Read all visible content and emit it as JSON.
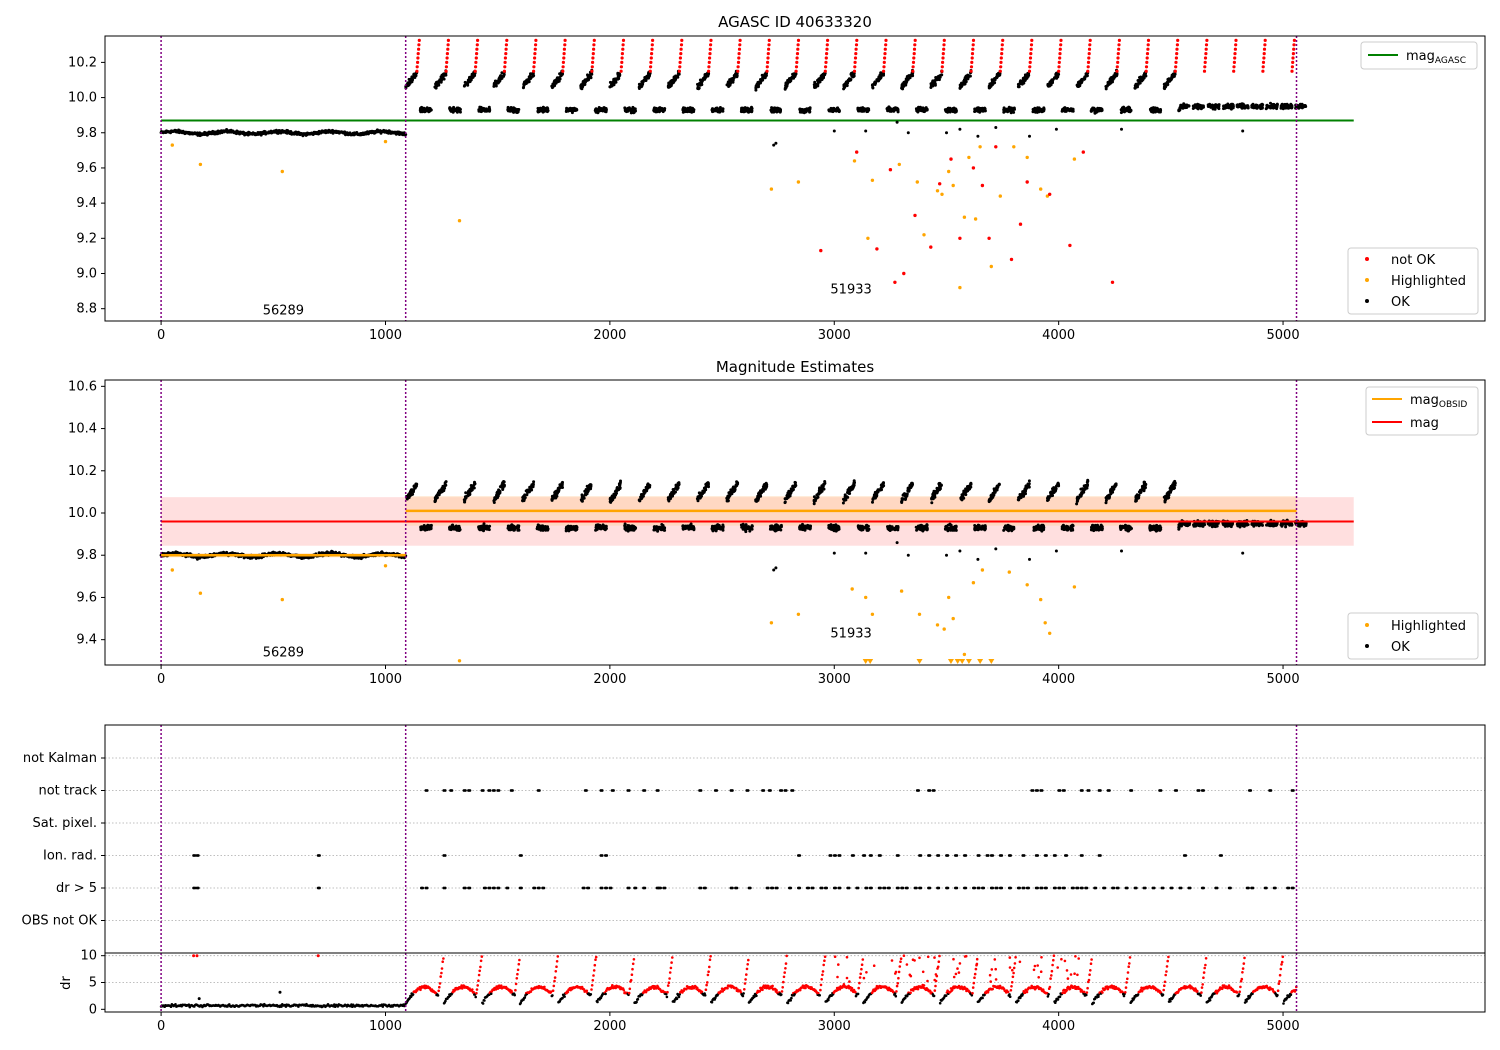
{
  "colors": {
    "ok": "#000000",
    "not_ok": "#ff0000",
    "highlighted": "#ffa500",
    "mag_agasc": "#008000",
    "mag_obsid": "#ffa500",
    "mag": "#ff0000",
    "obsid_boundary": "#800080",
    "band_fill": "#ffc0c0",
    "band_fill_obsid": "#ffd0a0"
  },
  "chart_data": [
    {
      "type": "scatter",
      "title": "AGASC ID 40633320",
      "xlim": [
        -250,
        5900
      ],
      "ylim": [
        8.73,
        10.35
      ],
      "xticks": [
        0,
        1000,
        2000,
        3000,
        4000,
        5000
      ],
      "yticks": [
        8.8,
        9.0,
        9.2,
        9.4,
        9.6,
        9.8,
        10.0,
        10.2
      ],
      "legend_upper": [
        {
          "label": "mag",
          "sub": "AGASC",
          "color": "#008000"
        }
      ],
      "legend_lower": [
        {
          "label": "not OK",
          "color": "#ff0000"
        },
        {
          "label": "Highlighted",
          "color": "#ffa500"
        },
        {
          "label": "OK",
          "color": "#000000"
        }
      ],
      "hline": {
        "name": "mag_AGASC",
        "y": 9.87
      },
      "obsid_boundaries": [
        0,
        1090,
        5060
      ],
      "obsid_labels": [
        {
          "text": "56289",
          "x": 545,
          "y": 8.79
        },
        {
          "text": "51933",
          "x": 3075,
          "y": 8.91
        }
      ],
      "segments": [
        {
          "x0": 0,
          "x1": 1090,
          "base": 9.8,
          "jitter": 0.02
        },
        {
          "x0": 1090,
          "x1": 5060,
          "base": 10.0,
          "jitter": 0.03
        }
      ],
      "highlighted_points": [
        [
          50,
          9.73
        ],
        [
          175,
          9.62
        ],
        [
          540,
          9.58
        ],
        [
          1000,
          9.75
        ],
        [
          1330,
          9.3
        ],
        [
          2720,
          9.48
        ],
        [
          2840,
          9.52
        ],
        [
          3090,
          9.64
        ],
        [
          3150,
          9.2
        ],
        [
          3170,
          9.53
        ],
        [
          3290,
          9.62
        ],
        [
          3370,
          9.52
        ],
        [
          3400,
          9.22
        ],
        [
          3460,
          9.47
        ],
        [
          3480,
          9.45
        ],
        [
          3510,
          9.58
        ],
        [
          3530,
          9.5
        ],
        [
          3560,
          8.92
        ],
        [
          3580,
          9.32
        ],
        [
          3600,
          9.66
        ],
        [
          3630,
          9.31
        ],
        [
          3650,
          9.72
        ],
        [
          3700,
          9.04
        ],
        [
          3740,
          9.44
        ],
        [
          3800,
          9.72
        ],
        [
          3860,
          9.66
        ],
        [
          3920,
          9.48
        ],
        [
          3950,
          9.44
        ],
        [
          4070,
          9.65
        ]
      ],
      "not_ok_points": [
        [
          2940,
          9.13
        ],
        [
          3100,
          9.69
        ],
        [
          3190,
          9.14
        ],
        [
          3250,
          9.59
        ],
        [
          3270,
          8.95
        ],
        [
          3310,
          9.0
        ],
        [
          3360,
          9.33
        ],
        [
          3430,
          9.15
        ],
        [
          3470,
          9.51
        ],
        [
          3520,
          9.65
        ],
        [
          3560,
          9.2
        ],
        [
          3620,
          9.6
        ],
        [
          3660,
          9.5
        ],
        [
          3690,
          9.2
        ],
        [
          3720,
          9.72
        ],
        [
          3790,
          9.08
        ],
        [
          3830,
          9.28
        ],
        [
          3860,
          9.52
        ],
        [
          3960,
          9.45
        ],
        [
          4050,
          9.16
        ],
        [
          4110,
          9.69
        ],
        [
          4240,
          8.95
        ]
      ],
      "ok_outliers": [
        [
          2730,
          9.73
        ],
        [
          2740,
          9.74
        ],
        [
          3000,
          9.81
        ],
        [
          3140,
          9.81
        ],
        [
          3280,
          9.86
        ],
        [
          3330,
          9.8
        ],
        [
          3500,
          9.8
        ],
        [
          3560,
          9.82
        ],
        [
          3640,
          9.78
        ],
        [
          3720,
          9.83
        ],
        [
          3870,
          9.78
        ],
        [
          3990,
          9.82
        ],
        [
          4280,
          9.82
        ],
        [
          4820,
          9.81
        ]
      ]
    },
    {
      "type": "scatter",
      "title": "Magnitude Estimates",
      "xlim": [
        -250,
        5900
      ],
      "ylim": [
        9.28,
        10.63
      ],
      "xticks": [
        0,
        1000,
        2000,
        3000,
        4000,
        5000
      ],
      "yticks": [
        9.4,
        9.6,
        9.8,
        10.0,
        10.2,
        10.4,
        10.6
      ],
      "legend_upper": [
        {
          "label": "mag",
          "sub": "OBSID",
          "color": "#ffa500"
        },
        {
          "label": "mag",
          "sub": "",
          "color": "#ff0000"
        }
      ],
      "legend_lower": [
        {
          "label": "Highlighted",
          "color": "#ffa500"
        },
        {
          "label": "OK",
          "color": "#000000"
        }
      ],
      "mag": {
        "y": 9.96,
        "band": [
          9.845,
          10.075
        ],
        "x0": 0,
        "x1": 5315
      },
      "mag_obsid": [
        {
          "x0": 0,
          "x1": 1090,
          "y": 9.8,
          "band": [
            9.79,
            9.81
          ]
        },
        {
          "x0": 1090,
          "x1": 5060,
          "y": 10.01,
          "band": [
            9.94,
            10.08
          ]
        }
      ],
      "obsid_boundaries": [
        0,
        1090,
        5060
      ],
      "obsid_labels": [
        {
          "text": "56289",
          "x": 545,
          "y": 9.34
        },
        {
          "text": "51933",
          "x": 3075,
          "y": 9.43
        }
      ],
      "highlighted_points": [
        [
          50,
          9.73
        ],
        [
          175,
          9.62
        ],
        [
          540,
          9.59
        ],
        [
          1000,
          9.75
        ],
        [
          1330,
          9.3
        ],
        [
          2720,
          9.48
        ],
        [
          2840,
          9.52
        ],
        [
          3080,
          9.64
        ],
        [
          3140,
          9.6
        ],
        [
          3170,
          9.52
        ],
        [
          3300,
          9.63
        ],
        [
          3380,
          9.52
        ],
        [
          3460,
          9.47
        ],
        [
          3490,
          9.45
        ],
        [
          3510,
          9.6
        ],
        [
          3530,
          9.5
        ],
        [
          3580,
          9.33
        ],
        [
          3620,
          9.67
        ],
        [
          3660,
          9.73
        ],
        [
          3780,
          9.72
        ],
        [
          3860,
          9.66
        ],
        [
          3920,
          9.59
        ],
        [
          3940,
          9.48
        ],
        [
          3960,
          9.43
        ],
        [
          4070,
          9.65
        ]
      ],
      "clipped_points": [
        3140,
        3160,
        3380,
        3520,
        3550,
        3570,
        3600,
        3650,
        3700
      ]
    },
    {
      "type": "scatter",
      "title": "",
      "xlim": [
        -250,
        5900
      ],
      "categories": [
        "not Kalman",
        "not track",
        "Sat. pixel.",
        "Ion. rad.",
        "dr > 5",
        "OBS not OK"
      ],
      "flag_x": {
        "not track": [
          1180,
          1260,
          1290,
          1350,
          1370,
          1430,
          1460,
          1480,
          1500,
          1560,
          1680,
          1890,
          1960,
          2010,
          2080,
          2150,
          2210,
          2400,
          2470,
          2540,
          2610,
          2680,
          2710,
          2760,
          2780,
          2810,
          3370,
          3420,
          3440,
          3880,
          3900,
          3920,
          4000,
          4020,
          4100,
          4130,
          4180,
          4220,
          4320,
          4450,
          4520,
          4620,
          4640,
          4850,
          4940,
          5040
        ],
        "Ion. rad.": [
          145,
          160,
          700,
          1260,
          1600,
          1960,
          1980,
          2840,
          2980,
          3000,
          3020,
          3080,
          3130,
          3160,
          3200,
          3280,
          3380,
          3420,
          3460,
          3500,
          3540,
          3580,
          3640,
          3680,
          3700,
          3740,
          3780,
          3840,
          3900,
          3940,
          3980,
          4030,
          4100,
          4180,
          4560,
          4720
        ],
        "dr > 5": [
          145,
          160,
          700,
          1160,
          1180,
          1260,
          1350,
          1370,
          1440,
          1460,
          1480,
          1500,
          1540,
          1600,
          1660,
          1680,
          1700,
          1880,
          1900,
          1960,
          1980,
          2000,
          2080,
          2110,
          2150,
          2210,
          2220,
          2240,
          2400,
          2420,
          2540,
          2560,
          2620,
          2700,
          2720,
          2740,
          2800,
          2840,
          2880,
          2900,
          2940,
          2960,
          3000,
          3020,
          3060,
          3100,
          3140,
          3160,
          3200,
          3220,
          3240,
          3280,
          3300,
          3320,
          3360,
          3380,
          3420,
          3460,
          3500,
          3540,
          3580,
          3620,
          3640,
          3660,
          3700,
          3720,
          3740,
          3780,
          3820,
          3840,
          3860,
          3900,
          3920,
          3940,
          3980,
          4000,
          4020,
          4060,
          4080,
          4100,
          4120,
          4160,
          4200,
          4240,
          4260,
          4300,
          4340,
          4380,
          4420,
          4460,
          4500,
          4540,
          4580,
          4640,
          4700,
          4760,
          4840,
          4860,
          4920,
          4960,
          5020,
          5040
        ]
      }
    },
    {
      "type": "scatter",
      "title": "",
      "ylabel": "dr",
      "xlim": [
        -250,
        5900
      ],
      "ylim": [
        -0.5,
        10.5
      ],
      "yticks": [
        0,
        5,
        10
      ],
      "xticks": [
        0,
        1000,
        2000,
        3000,
        4000,
        5000
      ],
      "threshold": 5,
      "obsid_boundaries": [
        0,
        1090,
        5060
      ],
      "early_outliers": [
        [
          145,
          10
        ],
        [
          160,
          10
        ],
        [
          530,
          3.2
        ],
        [
          700,
          10
        ],
        [
          170,
          2
        ]
      ]
    }
  ]
}
